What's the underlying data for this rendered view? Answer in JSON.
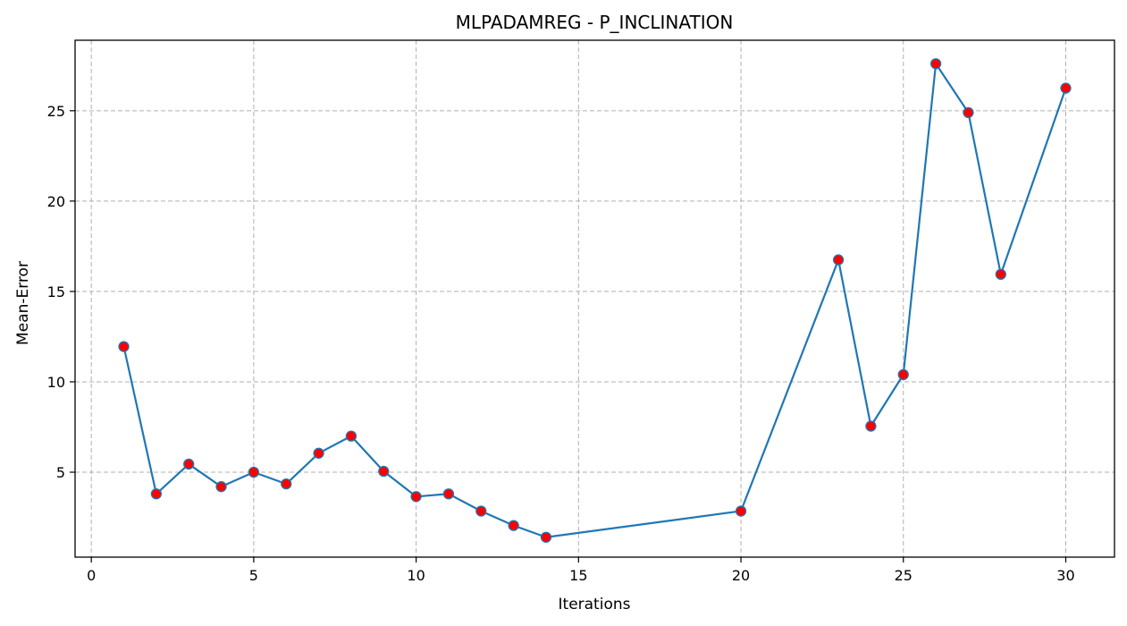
{
  "chart_data": {
    "type": "line",
    "title": "MLPADAMREG - P_INCLINATION",
    "xlabel": "Iterations",
    "ylabel": "Mean-Error",
    "xlim": [
      -0.5,
      31.5
    ],
    "ylim": [
      0.3,
      28.9
    ],
    "xticks": [
      0,
      5,
      10,
      15,
      20,
      25,
      30
    ],
    "yticks": [
      5,
      10,
      15,
      20,
      25
    ],
    "grid": true,
    "series": [
      {
        "x": [
          1,
          2,
          3,
          4,
          5,
          6,
          7,
          8,
          9,
          10,
          11,
          12,
          13,
          14,
          20,
          23,
          24,
          25,
          26,
          27,
          28,
          30
        ],
        "y": [
          11.95,
          3.8,
          5.45,
          4.2,
          5.0,
          4.35,
          6.05,
          7.0,
          5.05,
          3.65,
          3.8,
          2.85,
          2.05,
          1.4,
          2.85,
          16.75,
          7.55,
          10.4,
          27.6,
          24.9,
          15.95,
          26.25
        ],
        "line_color": "#1f77b4",
        "marker_color": "#ff0000"
      }
    ]
  }
}
